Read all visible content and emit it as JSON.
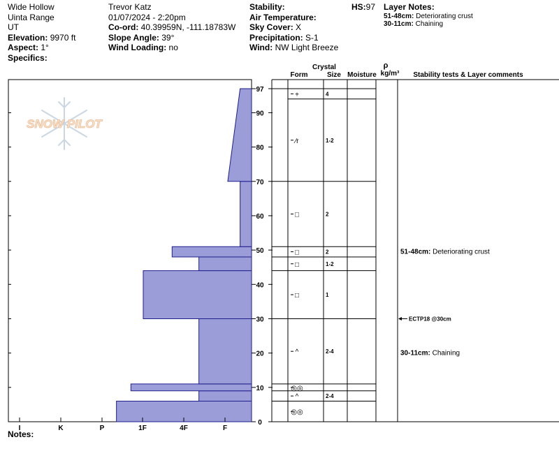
{
  "site": {
    "location": "Wide Hollow",
    "range": "Uinta Range",
    "state": "UT",
    "elevation_label": "Elevation:",
    "elevation": "9970 ft",
    "aspect_label": "Aspect:",
    "aspect": "1°",
    "specifics_label": "Specifics:"
  },
  "observer": {
    "name": "Trevor Katz",
    "datetime": "01/07/2024 - 2:20pm",
    "coord_label": "Co-ord:",
    "coord": "40.39959N, -111.18783W",
    "slope_label": "Slope Angle:",
    "slope": "39°",
    "wind_loading_label": "Wind Loading:",
    "wind_loading": "no"
  },
  "conditions": {
    "stability_label": "Stability:",
    "air_temp_label": "Air Temperature:",
    "sky_label": "Sky Cover:",
    "sky": "X",
    "precip_label": "Precipitation:",
    "precip": "S-1",
    "wind_label": "Wind:",
    "wind": "NW Light Breeze",
    "hs_label": "HS:",
    "hs": "97"
  },
  "layer_notes": {
    "title": "Layer Notes:",
    "notes": [
      {
        "range": "51-48cm:",
        "text": "Deteriorating crust"
      },
      {
        "range": "30-11cm:",
        "text": "Chaining"
      }
    ]
  },
  "watermark": "SNOW PILOT",
  "notes_label": "Notes:",
  "table_headers": {
    "crystal": "Crystal",
    "form": "Form",
    "size": "Size",
    "moisture": "Moisture",
    "rho": "ρ",
    "density": "kg/m³",
    "comments": "Stability tests & Layer comments"
  },
  "chart_data": {
    "type": "bar",
    "title": "",
    "ylabel": "",
    "xlabel": "",
    "ylim": [
      0,
      97
    ],
    "yticks": [
      0,
      10,
      20,
      30,
      40,
      50,
      60,
      70,
      80,
      90,
      97
    ],
    "hardness_scale": [
      "I",
      "K",
      "P",
      "1F",
      "4F",
      "F"
    ],
    "hardness_profile": [
      {
        "bottom": 0,
        "top": 6,
        "hardness": 2.35
      },
      {
        "bottom": 6,
        "top": 9,
        "hardness": 4.35
      },
      {
        "bottom": 9,
        "top": 11,
        "hardness": 2.7
      },
      {
        "bottom": 11,
        "top": 30,
        "hardness": 4.35
      },
      {
        "bottom": 30,
        "top": 44,
        "hardness": 3.0
      },
      {
        "bottom": 44,
        "top": 48,
        "hardness": 4.35
      },
      {
        "bottom": 48,
        "top": 51,
        "hardness": 3.7
      },
      {
        "bottom": 51,
        "top": 70,
        "hardness": 5.35
      },
      {
        "bottom": 70,
        "top": 97,
        "hardness_bottom": 5.05,
        "hardness_top": 5.35
      }
    ],
    "layers": [
      {
        "top": 97,
        "bottom": 70,
        "form": "+",
        "size": "4",
        "sub_top": 97,
        "sub_bottom": 94
      },
      {
        "top": 97,
        "bottom": 70,
        "form": "⁄r",
        "size": "1-2",
        "sub_top": 94,
        "sub_bottom": 70
      },
      {
        "top": 70,
        "bottom": 51,
        "form": "□",
        "size": "2"
      },
      {
        "top": 51,
        "bottom": 48,
        "form": "□",
        "size": "2"
      },
      {
        "top": 48,
        "bottom": 44,
        "form": "□",
        "size": "1-2"
      },
      {
        "top": 44,
        "bottom": 30,
        "form": "□",
        "size": "1"
      },
      {
        "top": 30,
        "bottom": 11,
        "form": "^",
        "size": "2-4"
      },
      {
        "top": 11,
        "bottom": 9,
        "form": "◎◎",
        "size": ""
      },
      {
        "top": 9,
        "bottom": 6,
        "form": "^",
        "size": "2-4"
      },
      {
        "top": 6,
        "bottom": 0,
        "form": "◎◎",
        "size": ""
      }
    ],
    "comments": [
      {
        "height": 49.5,
        "range": "51-48cm:",
        "text": "Deteriorating crust"
      },
      {
        "height": 20,
        "range": "30-11cm:",
        "text": "Chaining"
      }
    ],
    "stability_tests": [
      {
        "height": 30,
        "text": "ECTP18 @30cm"
      }
    ]
  }
}
